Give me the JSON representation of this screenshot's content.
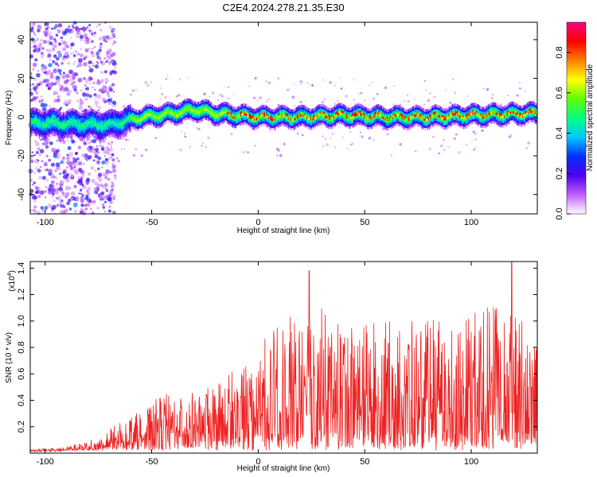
{
  "title": "C2E4.2024.278.21.35.E30",
  "chart_data": [
    {
      "type": "heatmap",
      "xlabel": "Height of straight line (km)",
      "ylabel": "Frequency (Hz)",
      "xlim": [
        -107,
        131
      ],
      "ylim": [
        -50,
        49
      ],
      "xticks": [
        -100,
        -50,
        0,
        50,
        100
      ],
      "yticks": [
        -40,
        -20,
        0,
        20,
        40
      ],
      "colorbar": {
        "label": "Normalized spectral amplitude",
        "range": [
          0.0,
          0.95
        ],
        "ticks": [
          0.0,
          0.2,
          0.4,
          0.6,
          0.8
        ],
        "colors": [
          "#ffffff",
          "#c060ff",
          "#5000f0",
          "#0030ff",
          "#00c8ff",
          "#00ff80",
          "#60ff00",
          "#ffff00",
          "#ff8000",
          "#ff0000",
          "#ff0080"
        ]
      },
      "ridge_frequency_hz": [
        {
          "x": -100,
          "y": -3
        },
        {
          "x": -70,
          "y": -4
        },
        {
          "x": -55,
          "y": 0
        },
        {
          "x": -40,
          "y": 2
        },
        {
          "x": -30,
          "y": 4
        },
        {
          "x": -20,
          "y": 2
        },
        {
          "x": -10,
          "y": 1
        },
        {
          "x": 0,
          "y": 0
        },
        {
          "x": 10,
          "y": 0
        },
        {
          "x": 20,
          "y": 0
        },
        {
          "x": 40,
          "y": 1
        },
        {
          "x": 60,
          "y": 0
        },
        {
          "x": 80,
          "y": 0
        },
        {
          "x": 100,
          "y": 1
        },
        {
          "x": 130,
          "y": 2
        }
      ]
    },
    {
      "type": "line",
      "xlabel": "Height of straight line (km)",
      "ylabel": "SNR (10 * v/v)",
      "multiplier_label": "(x10",
      "multiplier_exp": "4",
      "multiplier_close": ")",
      "xlim": [
        -107,
        131
      ],
      "ylim": [
        0,
        1.45
      ],
      "xticks": [
        -100,
        -50,
        0,
        50,
        100
      ],
      "yticks": [
        0.2,
        0.4,
        0.6,
        0.8,
        1.0,
        1.2,
        1.4
      ],
      "color": "#ee2222",
      "envelope": [
        {
          "x": -107,
          "y": 0.03
        },
        {
          "x": -95,
          "y": 0.04
        },
        {
          "x": -85,
          "y": 0.07
        },
        {
          "x": -75,
          "y": 0.12
        },
        {
          "x": -65,
          "y": 0.25
        },
        {
          "x": -55,
          "y": 0.32
        },
        {
          "x": -45,
          "y": 0.45
        },
        {
          "x": -35,
          "y": 0.45
        },
        {
          "x": -25,
          "y": 0.48
        },
        {
          "x": -15,
          "y": 0.6
        },
        {
          "x": -5,
          "y": 0.75
        },
        {
          "x": 5,
          "y": 0.9
        },
        {
          "x": 15,
          "y": 1.05
        },
        {
          "x": 25,
          "y": 1.15
        },
        {
          "x": 35,
          "y": 1.05
        },
        {
          "x": 45,
          "y": 1.0
        },
        {
          "x": 55,
          "y": 1.0
        },
        {
          "x": 65,
          "y": 1.0
        },
        {
          "x": 75,
          "y": 1.0
        },
        {
          "x": 85,
          "y": 1.05
        },
        {
          "x": 95,
          "y": 1.05
        },
        {
          "x": 105,
          "y": 1.1
        },
        {
          "x": 115,
          "y": 1.15
        },
        {
          "x": 125,
          "y": 1.05
        },
        {
          "x": 131,
          "y": 1.0
        }
      ],
      "peaks": [
        {
          "x": 24,
          "y": 1.38
        },
        {
          "x": 119,
          "y": 1.45
        }
      ]
    }
  ]
}
